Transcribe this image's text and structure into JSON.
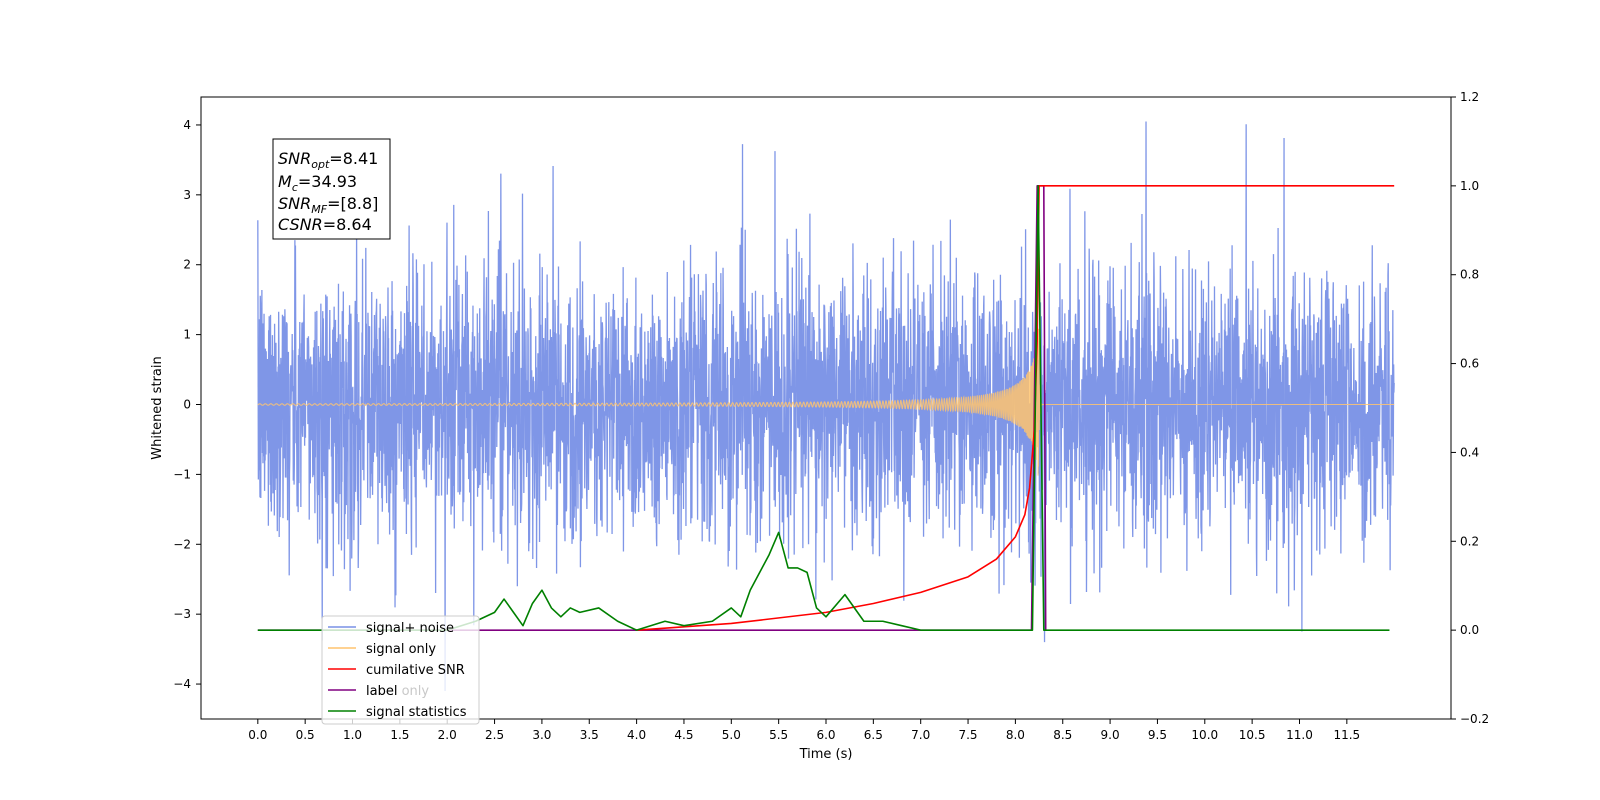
{
  "chart_data": {
    "type": "line",
    "xlabel": "Time (s)",
    "ylabel": "Whitened strain",
    "xlim": [
      -0.6,
      12.6
    ],
    "ylim": [
      -4.5,
      4.4
    ],
    "y2lim": [
      -0.2,
      1.2
    ],
    "x_ticks": [
      "0.0",
      "0.5",
      "1.0",
      "1.5",
      "2.0",
      "2.5",
      "3.0",
      "3.5",
      "4.0",
      "4.5",
      "5.0",
      "5.5",
      "6.0",
      "6.5",
      "7.0",
      "7.5",
      "8.0",
      "8.5",
      "9.0",
      "9.5",
      "10.0",
      "10.5",
      "11.0",
      "11.5"
    ],
    "y_ticks": [
      "4",
      "3",
      "2",
      "1",
      "0",
      "−1",
      "−2",
      "−3",
      "−4"
    ],
    "y2_ticks": [
      "1.2",
      "1.0",
      "0.8",
      "0.6",
      "0.4",
      "0.2",
      "0.0",
      "−0.2"
    ],
    "annotation": {
      "lines": [
        {
          "sym": "SNR",
          "sub": "opt",
          "val": "=8.41"
        },
        {
          "sym": "M",
          "sub": "c",
          "val": "=34.93"
        },
        {
          "sym": "SNR",
          "sub": "MF",
          "val": "=[8.8]"
        },
        {
          "sym": "CSNR",
          "sub": "",
          "val": "=8.64"
        }
      ]
    },
    "legend": {
      "placement": "lower-left",
      "entries": [
        {
          "label": "signal+ noise",
          "color": "#7890e6"
        },
        {
          "label": "signal only",
          "color": "#ffc46e"
        },
        {
          "label": "cumilative SNR",
          "color": "#ff0000"
        },
        {
          "label": "label",
          "color": "#800080"
        },
        {
          "label": "signal statistics",
          "color": "#008000"
        }
      ],
      "hidden_text": [
        "label only"
      ]
    },
    "series": [
      {
        "name": "signal+ noise",
        "axis": "left",
        "kind": "noise",
        "x_range": [
          0.0,
          12.0
        ],
        "std": 0.95,
        "color": "#7890e6"
      },
      {
        "name": "signal only",
        "axis": "left",
        "kind": "chirp",
        "x_range": [
          0.0,
          12.0
        ],
        "merger": 8.25,
        "peak_amplitude": 1.3,
        "color": "#ffc46e"
      },
      {
        "name": "cumilative SNR",
        "axis": "right",
        "x": [
          4.0,
          5.0,
          6.0,
          6.5,
          7.0,
          7.5,
          7.8,
          8.0,
          8.1,
          8.15,
          8.2,
          8.23,
          8.25,
          8.27,
          11.5,
          12.0
        ],
        "y": [
          0.0,
          0.015,
          0.04,
          0.06,
          0.085,
          0.12,
          0.16,
          0.21,
          0.26,
          0.32,
          0.45,
          0.65,
          1.0,
          1.0,
          1.0,
          1.0
        ],
        "color": "#ff0000"
      },
      {
        "name": "label",
        "axis": "right",
        "x": [
          0.0,
          8.17,
          8.23,
          8.3,
          8.32
        ],
        "y": [
          0.0,
          0.0,
          1.0,
          1.0,
          0.0
        ],
        "color": "#800080"
      },
      {
        "name": "signal statistics",
        "axis": "right",
        "x": [
          0.0,
          2.0,
          2.3,
          2.5,
          2.6,
          2.7,
          2.8,
          2.9,
          3.0,
          3.1,
          3.2,
          3.3,
          3.4,
          3.6,
          3.8,
          4.0,
          4.3,
          4.5,
          4.8,
          5.0,
          5.1,
          5.2,
          5.4,
          5.5,
          5.6,
          5.7,
          5.8,
          5.9,
          6.0,
          6.2,
          6.4,
          6.6,
          6.8,
          7.0,
          7.5,
          8.0,
          8.18,
          8.24,
          8.27,
          8.3,
          11.0,
          11.95
        ],
        "y": [
          0.0,
          0.0,
          0.02,
          0.04,
          0.07,
          0.04,
          0.01,
          0.06,
          0.09,
          0.05,
          0.03,
          0.05,
          0.04,
          0.05,
          0.02,
          0.0,
          0.02,
          0.01,
          0.02,
          0.05,
          0.03,
          0.09,
          0.17,
          0.22,
          0.14,
          0.14,
          0.13,
          0.05,
          0.03,
          0.08,
          0.02,
          0.02,
          0.01,
          0.0,
          0.0,
          0.0,
          0.0,
          1.0,
          0.5,
          0.0,
          0.0,
          0.0
        ],
        "color": "#008000"
      }
    ]
  }
}
